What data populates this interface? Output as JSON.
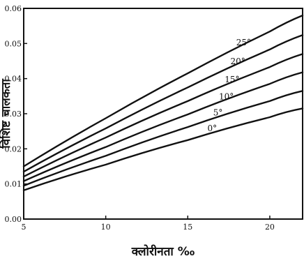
{
  "chart_data": {
    "type": "line",
    "xlabel": "क्लोरीनता ‰",
    "ylabel": "विशिष्ट चालकता",
    "xlim": [
      5,
      22
    ],
    "ylim": [
      0.0,
      0.06
    ],
    "x_ticks": [
      {
        "value": 5,
        "label": "5"
      },
      {
        "value": 10,
        "label": "10"
      },
      {
        "value": 15,
        "label": "15"
      },
      {
        "value": 20,
        "label": "20"
      }
    ],
    "y_ticks": [
      {
        "value": 0.0,
        "label": "0.00"
      },
      {
        "value": 0.01,
        "label": "0.01"
      },
      {
        "value": 0.02,
        "label": "0.02"
      },
      {
        "value": 0.03,
        "label": "0.03"
      },
      {
        "value": 0.04,
        "label": "0.04"
      },
      {
        "value": 0.05,
        "label": "0.05"
      },
      {
        "value": 0.06,
        "label": "0.06"
      }
    ],
    "x": [
      5,
      10,
      15,
      20,
      22
    ],
    "series": [
      {
        "label": "0°",
        "values": [
          0.0082,
          0.0155,
          0.0225,
          0.029,
          0.0315
        ]
      },
      {
        "label": "5°",
        "values": [
          0.0095,
          0.018,
          0.0262,
          0.0336,
          0.0365
        ]
      },
      {
        "label": "10°",
        "values": [
          0.0108,
          0.0205,
          0.0298,
          0.0385,
          0.0418
        ]
      },
      {
        "label": "15°",
        "values": [
          0.0121,
          0.0232,
          0.0336,
          0.0433,
          0.047
        ]
      },
      {
        "label": "20°",
        "values": [
          0.0135,
          0.0258,
          0.0375,
          0.0483,
          0.0524
        ]
      },
      {
        "label": "25°",
        "values": [
          0.015,
          0.0287,
          0.0415,
          0.0534,
          0.058
        ]
      }
    ],
    "grid": false,
    "legend": "inline labels"
  }
}
